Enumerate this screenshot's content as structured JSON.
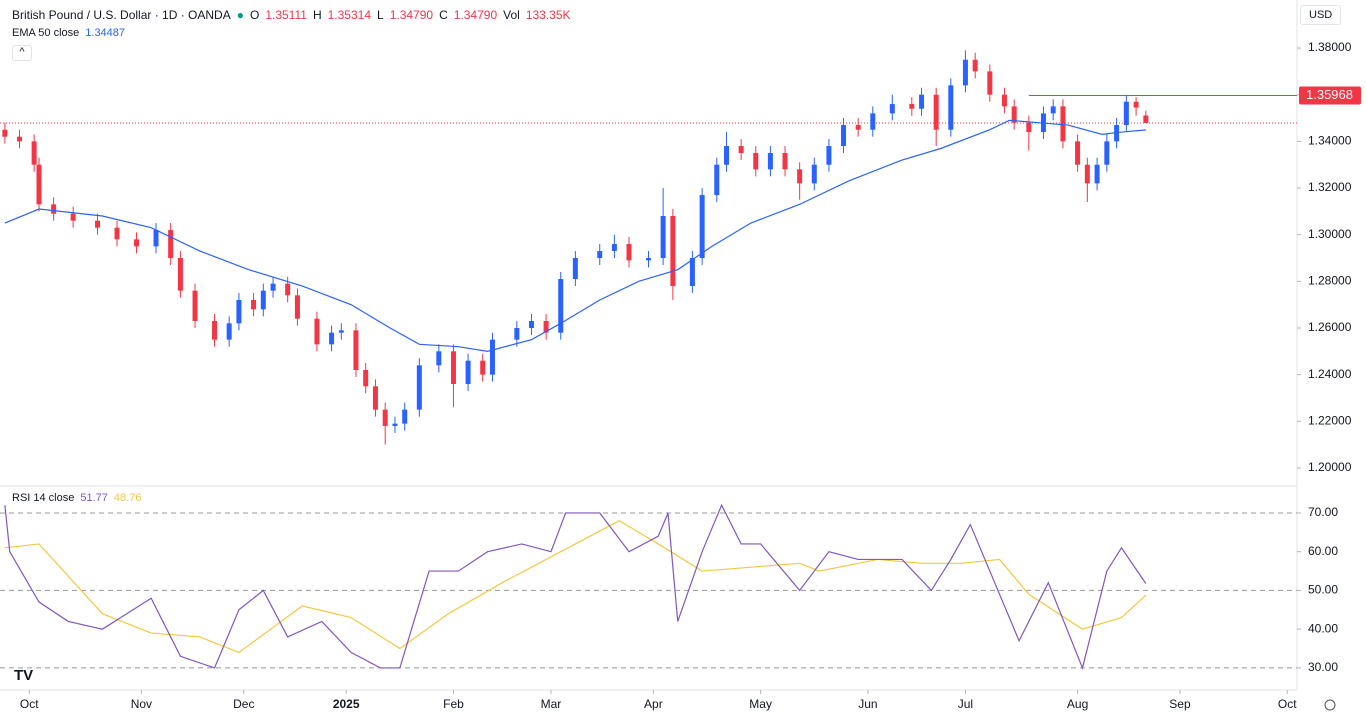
{
  "header": {
    "symbol": "British Pound / U.S. Dollar · 1D · OANDA",
    "o_label": "O",
    "open": "1.35111",
    "h_label": "H",
    "high": "1.35314",
    "l_label": "L",
    "low": "1.34790",
    "c_label": "C",
    "close": "1.34790",
    "vol_label": "Vol",
    "volume": "133.35K",
    "currency": "USD"
  },
  "chart_data": {
    "type": "candlestick",
    "up_color": "#2962ff",
    "down_color": "#f23645",
    "xlim": [
      -1,
      265
    ],
    "xticks": [
      {
        "value": 5,
        "label": "Oct"
      },
      {
        "value": 28,
        "label": "Nov"
      },
      {
        "value": 49,
        "label": "Dec"
      },
      {
        "value": 70,
        "label": "2025"
      },
      {
        "value": 92,
        "label": "Feb"
      },
      {
        "value": 112,
        "label": "Mar"
      },
      {
        "value": 133,
        "label": "Apr"
      },
      {
        "value": 155,
        "label": "May"
      },
      {
        "value": 177,
        "label": "Jun"
      },
      {
        "value": 197,
        "label": "Jul"
      },
      {
        "value": 220,
        "label": "Aug"
      },
      {
        "value": 241,
        "label": "Sep"
      },
      {
        "value": 263,
        "label": "Oct"
      }
    ],
    "ylim": [
      1.1927,
      1.4006
    ],
    "yticks": [
      {
        "value": 1.2,
        "label": "1.20000"
      },
      {
        "value": 1.22,
        "label": "1.22000"
      },
      {
        "value": 1.24,
        "label": "1.24000"
      },
      {
        "value": 1.26,
        "label": "1.26000"
      },
      {
        "value": 1.28,
        "label": "1.28000"
      },
      {
        "value": 1.3,
        "label": "1.30000"
      },
      {
        "value": 1.32,
        "label": "1.32000"
      },
      {
        "value": 1.34,
        "label": "1.34000"
      },
      {
        "value": 1.36,
        "label": "1.36000"
      },
      {
        "value": 1.38,
        "label": "1.38000"
      }
    ],
    "candles": [
      [
        0,
        1.345,
        1.348,
        1.339,
        1.342
      ],
      [
        3,
        1.342,
        1.345,
        1.337,
        1.34
      ],
      [
        6,
        1.34,
        1.343,
        1.327,
        1.33
      ],
      [
        7,
        1.33,
        1.333,
        1.31,
        1.313
      ],
      [
        10,
        1.313,
        1.316,
        1.306,
        1.309
      ],
      [
        14,
        1.309,
        1.312,
        1.303,
        1.306
      ],
      [
        19,
        1.306,
        1.309,
        1.3,
        1.303
      ],
      [
        23,
        1.303,
        1.306,
        1.295,
        1.298
      ],
      [
        27,
        1.298,
        1.301,
        1.292,
        1.295
      ],
      [
        31,
        1.295,
        1.305,
        1.292,
        1.302
      ],
      [
        34,
        1.302,
        1.305,
        1.287,
        1.29
      ],
      [
        36,
        1.29,
        1.293,
        1.273,
        1.276
      ],
      [
        39,
        1.276,
        1.279,
        1.26,
        1.263
      ],
      [
        43,
        1.263,
        1.266,
        1.252,
        1.255
      ],
      [
        46,
        1.255,
        1.265,
        1.252,
        1.262
      ],
      [
        48,
        1.262,
        1.275,
        1.259,
        1.272
      ],
      [
        51,
        1.272,
        1.275,
        1.265,
        1.268
      ],
      [
        53,
        1.268,
        1.279,
        1.265,
        1.276
      ],
      [
        55,
        1.276,
        1.282,
        1.273,
        1.279
      ],
      [
        58,
        1.279,
        1.282,
        1.271,
        1.274
      ],
      [
        60,
        1.274,
        1.277,
        1.261,
        1.264
      ],
      [
        64,
        1.264,
        1.267,
        1.25,
        1.253
      ],
      [
        67,
        1.253,
        1.261,
        1.25,
        1.258
      ],
      [
        69,
        1.258,
        1.262,
        1.255,
        1.259
      ],
      [
        72,
        1.259,
        1.262,
        1.239,
        1.242
      ],
      [
        74,
        1.242,
        1.245,
        1.232,
        1.235
      ],
      [
        76,
        1.235,
        1.238,
        1.222,
        1.225
      ],
      [
        78,
        1.225,
        1.228,
        1.21,
        1.218
      ],
      [
        80,
        1.218,
        1.222,
        1.215,
        1.219
      ],
      [
        82,
        1.219,
        1.228,
        1.216,
        1.225
      ],
      [
        85,
        1.225,
        1.247,
        1.222,
        1.244
      ],
      [
        89,
        1.244,
        1.253,
        1.241,
        1.25
      ],
      [
        92,
        1.25,
        1.253,
        1.226,
        1.236
      ],
      [
        95,
        1.236,
        1.249,
        1.233,
        1.246
      ],
      [
        98,
        1.246,
        1.249,
        1.237,
        1.24
      ],
      [
        100,
        1.24,
        1.258,
        1.237,
        1.255
      ],
      [
        105,
        1.255,
        1.263,
        1.252,
        1.26
      ],
      [
        108,
        1.26,
        1.266,
        1.257,
        1.263
      ],
      [
        111,
        1.263,
        1.266,
        1.255,
        1.258
      ],
      [
        114,
        1.258,
        1.284,
        1.255,
        1.281
      ],
      [
        117,
        1.281,
        1.293,
        1.278,
        1.29
      ],
      [
        122,
        1.29,
        1.296,
        1.287,
        1.293
      ],
      [
        125,
        1.293,
        1.3,
        1.29,
        1.296
      ],
      [
        128,
        1.296,
        1.299,
        1.286,
        1.289
      ],
      [
        132,
        1.289,
        1.293,
        1.286,
        1.29
      ],
      [
        135,
        1.29,
        1.32,
        1.287,
        1.308
      ],
      [
        137,
        1.308,
        1.311,
        1.272,
        1.278
      ],
      [
        141,
        1.278,
        1.293,
        1.275,
        1.29
      ],
      [
        143,
        1.29,
        1.32,
        1.287,
        1.317
      ],
      [
        146,
        1.317,
        1.333,
        1.314,
        1.33
      ],
      [
        148,
        1.33,
        1.344,
        1.327,
        1.338
      ],
      [
        151,
        1.338,
        1.341,
        1.332,
        1.335
      ],
      [
        154,
        1.335,
        1.338,
        1.325,
        1.328
      ],
      [
        157,
        1.328,
        1.338,
        1.325,
        1.335
      ],
      [
        160,
        1.335,
        1.338,
        1.325,
        1.328
      ],
      [
        163,
        1.328,
        1.331,
        1.315,
        1.322
      ],
      [
        166,
        1.322,
        1.333,
        1.319,
        1.33
      ],
      [
        169,
        1.33,
        1.341,
        1.327,
        1.338
      ],
      [
        172,
        1.338,
        1.35,
        1.335,
        1.347
      ],
      [
        175,
        1.347,
        1.35,
        1.342,
        1.345
      ],
      [
        178,
        1.345,
        1.355,
        1.342,
        1.352
      ],
      [
        182,
        1.352,
        1.36,
        1.349,
        1.356
      ],
      [
        186,
        1.356,
        1.359,
        1.351,
        1.354
      ],
      [
        188,
        1.354,
        1.363,
        1.351,
        1.36
      ],
      [
        191,
        1.36,
        1.363,
        1.338,
        1.345
      ],
      [
        194,
        1.345,
        1.367,
        1.342,
        1.364
      ],
      [
        197,
        1.364,
        1.379,
        1.361,
        1.375
      ],
      [
        199,
        1.375,
        1.378,
        1.367,
        1.37
      ],
      [
        202,
        1.37,
        1.373,
        1.357,
        1.36
      ],
      [
        205,
        1.36,
        1.363,
        1.352,
        1.355
      ],
      [
        207,
        1.355,
        1.358,
        1.345,
        1.348
      ],
      [
        210,
        1.348,
        1.351,
        1.336,
        1.344
      ],
      [
        213,
        1.344,
        1.355,
        1.341,
        1.352
      ],
      [
        215,
        1.352,
        1.358,
        1.349,
        1.355
      ],
      [
        217,
        1.355,
        1.358,
        1.337,
        1.34
      ],
      [
        220,
        1.34,
        1.343,
        1.327,
        1.33
      ],
      [
        222,
        1.33,
        1.333,
        1.314,
        1.322
      ],
      [
        224,
        1.322,
        1.333,
        1.319,
        1.33
      ],
      [
        226,
        1.33,
        1.343,
        1.327,
        1.34
      ],
      [
        228,
        1.34,
        1.35,
        1.337,
        1.347
      ],
      [
        230,
        1.347,
        1.36,
        1.344,
        1.357
      ],
      [
        232,
        1.357,
        1.359,
        1.351,
        1.3545
      ],
      [
        234,
        1.35111,
        1.35314,
        1.3479,
        1.3479
      ]
    ],
    "ema": {
      "name": "EMA 50 close",
      "last": 1.34487,
      "color": "#2962ff",
      "x": [
        0,
        7,
        20,
        30,
        40,
        50,
        61,
        71,
        79,
        85,
        93,
        99,
        108,
        114,
        122,
        130,
        138,
        145,
        153,
        163,
        173,
        184,
        192,
        202,
        206,
        212,
        218,
        225,
        229,
        234
      ],
      "values": [
        1.305,
        1.311,
        1.308,
        1.303,
        1.293,
        1.285,
        1.278,
        1.27,
        1.26,
        1.253,
        1.252,
        1.25,
        1.255,
        1.262,
        1.272,
        1.28,
        1.285,
        1.295,
        1.305,
        1.313,
        1.323,
        1.332,
        1.337,
        1.345,
        1.349,
        1.348,
        1.347,
        1.343,
        1.344,
        1.34487
      ]
    },
    "hline": {
      "value": 1.35968,
      "x": 210,
      "color": "#f23645"
    },
    "rsi_ylim": [
      24.3,
      76.7
    ],
    "rsi_yticks": [
      {
        "value": 30,
        "label": "30.00"
      },
      {
        "value": 40,
        "label": "40.00"
      },
      {
        "value": 50,
        "label": "50.00"
      },
      {
        "value": 60,
        "label": "60.00"
      },
      {
        "value": 70,
        "label": "70.00"
      }
    ],
    "rsi_bands": [
      30,
      50,
      70
    ],
    "rsi": {
      "name": "RSI 14 close",
      "last": 51.77,
      "color": "#7e57c2",
      "x": [
        0,
        1,
        7,
        13,
        20,
        30,
        36,
        43,
        48,
        53,
        58,
        65,
        71,
        77,
        81,
        87,
        93,
        99,
        106,
        112,
        115,
        122,
        128,
        134,
        136,
        138,
        143,
        147,
        151,
        155,
        163,
        169,
        175,
        184,
        190,
        194,
        198,
        202,
        208,
        214,
        221,
        226,
        229,
        234
      ],
      "values": [
        72,
        60,
        47,
        42,
        40,
        48,
        33,
        30,
        45,
        50,
        38,
        42,
        34,
        30,
        30,
        55,
        55,
        60,
        62,
        60,
        70,
        70,
        60,
        64,
        70,
        42,
        60,
        72,
        62,
        62,
        50,
        60,
        58,
        58,
        50,
        58,
        67,
        55,
        37,
        52,
        30,
        55,
        61,
        51.77
      ]
    },
    "rsi_ma": {
      "last": 48.76,
      "color": "#f5c842",
      "x": [
        0,
        7,
        20,
        30,
        40,
        48,
        61,
        71,
        81,
        91,
        102,
        114,
        126,
        134,
        143,
        153,
        163,
        167,
        179,
        188,
        196,
        204,
        210,
        221,
        229,
        234
      ],
      "values": [
        61,
        62,
        44,
        39,
        38,
        34,
        46,
        43,
        35,
        44,
        52,
        60,
        68,
        62,
        55,
        56,
        57,
        55,
        58,
        57,
        57,
        58,
        49,
        40,
        43,
        48.76
      ]
    }
  }
}
